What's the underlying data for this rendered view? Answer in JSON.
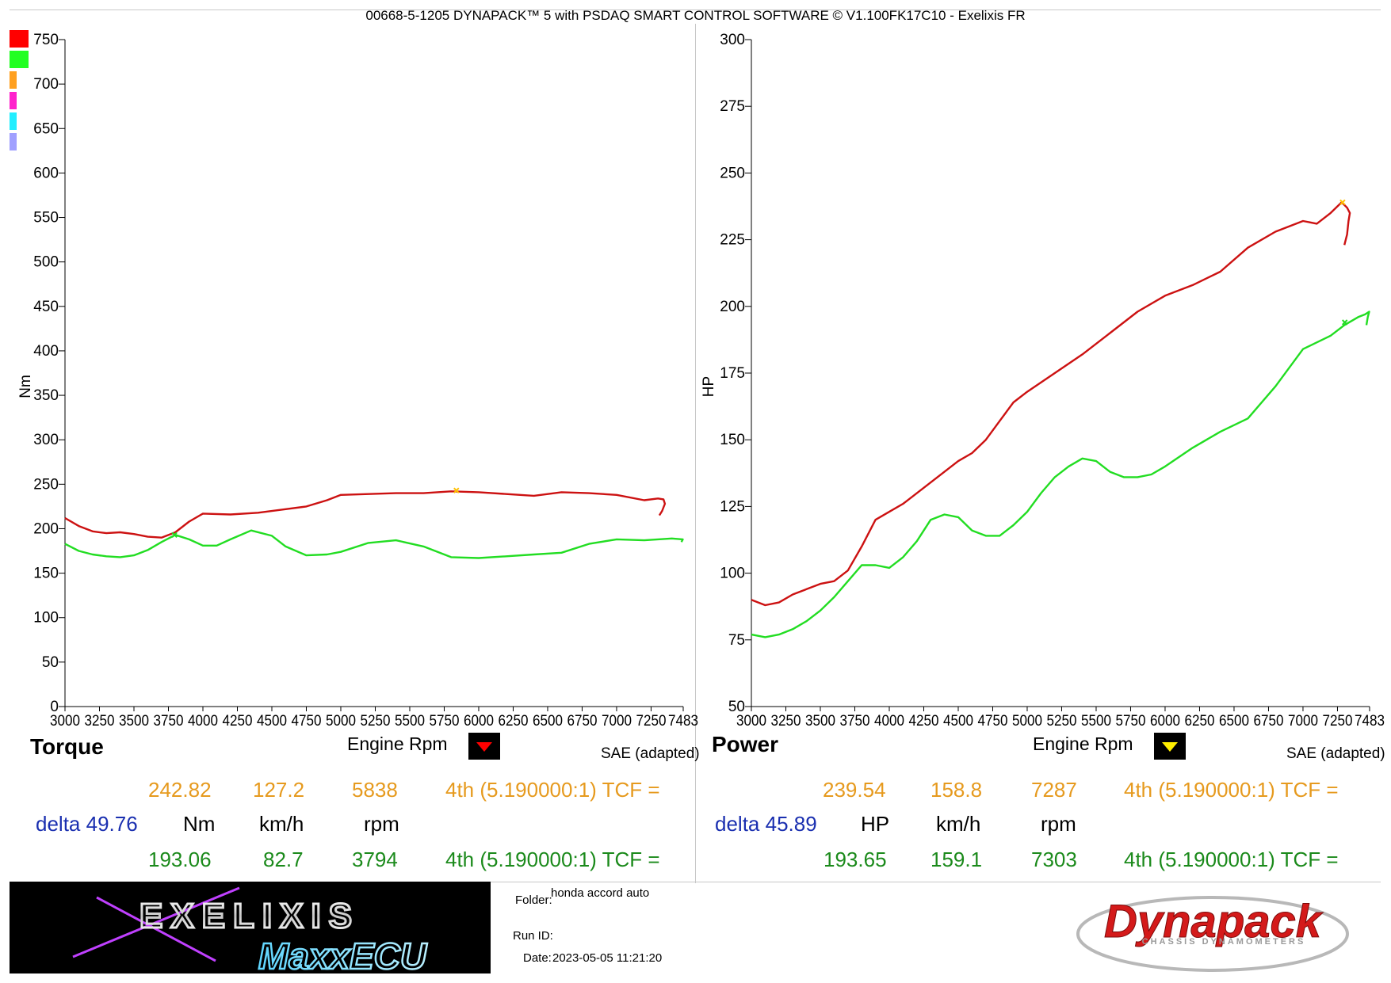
{
  "header": {
    "title": "00668-5-1205 DYNAPACK™ 5 with PSDAQ SMART CONTROL SOFTWARE © V1.100FK17C10 - Exelixis FR"
  },
  "legend": {
    "swatches": [
      {
        "color": "#ff0000"
      },
      {
        "color": "#22ff22"
      },
      {
        "color": "#ffa020"
      },
      {
        "color": "#ff22cc"
      },
      {
        "color": "#22eeff"
      },
      {
        "color": "#a0a0ff"
      }
    ]
  },
  "torque_panel": {
    "title": "Torque",
    "xlabel": "Engine Rpm",
    "ylabel": "Nm",
    "correction": "SAE (adapted)",
    "marker_color": "#ff0000",
    "row1": {
      "value": "242.82",
      "speed": "127.2",
      "rpm": "5838",
      "gear": "4th (5.190000:1) TCF ="
    },
    "units": {
      "delta": "delta 49.76",
      "value_unit": "Nm",
      "speed_unit": "km/h",
      "rpm_unit": "rpm"
    },
    "row2": {
      "value": "193.06",
      "speed": "82.7",
      "rpm": "3794",
      "gear": "4th (5.190000:1) TCF ="
    }
  },
  "power_panel": {
    "title": "Power",
    "xlabel": "Engine Rpm",
    "ylabel": "HP",
    "correction": "SAE (adapted)",
    "marker_color": "#ffee00",
    "row1": {
      "value": "239.54",
      "speed": "158.8",
      "rpm": "7287",
      "gear": "4th (5.190000:1) TCF ="
    },
    "units": {
      "delta": "delta 45.89",
      "value_unit": "HP",
      "speed_unit": "km/h",
      "rpm_unit": "rpm"
    },
    "row2": {
      "value": "193.65",
      "speed": "159.1",
      "rpm": "7303",
      "gear": "4th (5.190000:1) TCF ="
    }
  },
  "info": {
    "folder_label": "Folder:",
    "folder_value": "honda accord auto",
    "runid_label": "Run ID:",
    "runid_value": "",
    "date_label": "Date:",
    "date_value": "2023-05-05 11:21:20"
  },
  "logos": {
    "exelixis_line1": "EXELIXIS",
    "exelixis_line2": "MaxxECU",
    "dynapack_word": "Dynapack",
    "dynapack_sub": "CHASSIS DYNAMOMETERS"
  },
  "chart_data": [
    {
      "type": "line",
      "title": "Torque",
      "xlabel": "Engine Rpm",
      "ylabel": "Nm",
      "xlim": [
        3000,
        7483
      ],
      "ylim": [
        0,
        750
      ],
      "x_ticks": [
        "3000",
        "3250",
        "3500",
        "3750",
        "4000",
        "4250",
        "4500",
        "4750",
        "5000",
        "5250",
        "5500",
        "5750",
        "6000",
        "6250",
        "6500",
        "6750",
        "7000",
        "7250",
        "7483"
      ],
      "y_ticks": [
        "0",
        "50",
        "100",
        "150",
        "200",
        "250",
        "300",
        "350",
        "400",
        "450",
        "500",
        "550",
        "600",
        "650",
        "700",
        "750"
      ],
      "series": [
        {
          "color": "#cc1111",
          "x": [
            3000,
            3100,
            3200,
            3300,
            3400,
            3500,
            3600,
            3700,
            3800,
            3900,
            4000,
            4200,
            4400,
            4600,
            4750,
            4900,
            5000,
            5200,
            5400,
            5600,
            5800,
            6000,
            6200,
            6400,
            6600,
            6800,
            7000,
            7200,
            7300,
            7340,
            7350,
            7330,
            7310
          ],
          "y": [
            212,
            203,
            197,
            195,
            196,
            194,
            191,
            190,
            196,
            208,
            217,
            216,
            218,
            222,
            225,
            232,
            238,
            239,
            240,
            240,
            242,
            241,
            239,
            237,
            241,
            240,
            238,
            232,
            234,
            233,
            228,
            220,
            215
          ],
          "marker": {
            "x": 5838,
            "y": 243
          }
        },
        {
          "color": "#22dd22",
          "x": [
            3000,
            3100,
            3200,
            3300,
            3400,
            3500,
            3600,
            3700,
            3800,
            3900,
            4000,
            4100,
            4200,
            4350,
            4500,
            4600,
            4750,
            4900,
            5000,
            5200,
            5400,
            5600,
            5800,
            6000,
            6200,
            6400,
            6600,
            6800,
            7000,
            7200,
            7400,
            7480,
            7470
          ],
          "y": [
            183,
            175,
            171,
            169,
            168,
            170,
            176,
            185,
            193,
            188,
            181,
            181,
            188,
            198,
            192,
            180,
            170,
            171,
            174,
            184,
            187,
            180,
            168,
            167,
            169,
            171,
            173,
            183,
            188,
            187,
            189,
            188,
            185
          ],
          "marker": {
            "x": 3794,
            "y": 193
          }
        }
      ]
    },
    {
      "type": "line",
      "title": "Power",
      "xlabel": "Engine Rpm",
      "ylabel": "HP",
      "xlim": [
        3000,
        7483
      ],
      "ylim": [
        50,
        300
      ],
      "x_ticks": [
        "3000",
        "3250",
        "3500",
        "3750",
        "4000",
        "4250",
        "4500",
        "4750",
        "5000",
        "5250",
        "5500",
        "5750",
        "6000",
        "6250",
        "6500",
        "6750",
        "7000",
        "7250",
        "7483"
      ],
      "y_ticks": [
        "50",
        "75",
        "100",
        "125",
        "150",
        "175",
        "200",
        "225",
        "250",
        "275",
        "300"
      ],
      "series": [
        {
          "color": "#cc1111",
          "x": [
            3000,
            3100,
            3200,
            3300,
            3400,
            3500,
            3600,
            3700,
            3800,
            3900,
            4000,
            4100,
            4200,
            4300,
            4400,
            4500,
            4600,
            4700,
            4800,
            4900,
            5000,
            5200,
            5400,
            5600,
            5800,
            6000,
            6200,
            6400,
            6600,
            6800,
            7000,
            7100,
            7200,
            7280,
            7320,
            7340,
            7330,
            7320,
            7300
          ],
          "y": [
            90,
            88,
            89,
            92,
            94,
            96,
            97,
            101,
            110,
            120,
            123,
            126,
            130,
            134,
            138,
            142,
            145,
            150,
            157,
            164,
            168,
            175,
            182,
            190,
            198,
            204,
            208,
            213,
            222,
            228,
            232,
            231,
            235,
            239,
            237,
            235,
            232,
            227,
            223
          ],
          "marker": {
            "x": 7287,
            "y": 239
          }
        },
        {
          "color": "#22dd22",
          "x": [
            3000,
            3100,
            3200,
            3300,
            3400,
            3500,
            3600,
            3700,
            3800,
            3900,
            4000,
            4100,
            4200,
            4300,
            4400,
            4500,
            4600,
            4700,
            4800,
            4900,
            5000,
            5100,
            5200,
            5300,
            5400,
            5500,
            5600,
            5700,
            5800,
            5900,
            6000,
            6200,
            6400,
            6600,
            6800,
            7000,
            7200,
            7300,
            7400,
            7450,
            7480,
            7470,
            7460
          ],
          "y": [
            77,
            76,
            77,
            79,
            82,
            86,
            91,
            97,
            103,
            103,
            102,
            106,
            112,
            120,
            122,
            121,
            116,
            114,
            114,
            118,
            123,
            130,
            136,
            140,
            143,
            142,
            138,
            136,
            136,
            137,
            140,
            147,
            153,
            158,
            170,
            184,
            189,
            193,
            196,
            197,
            198,
            196,
            193
          ],
          "marker": {
            "x": 7303,
            "y": 194
          }
        }
      ]
    }
  ]
}
